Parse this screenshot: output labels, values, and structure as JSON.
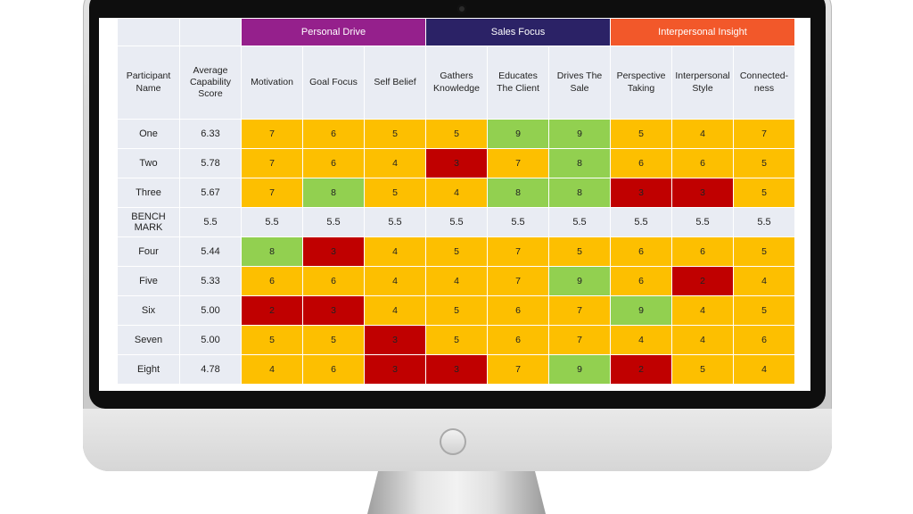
{
  "colors": {
    "orange": "#fdbf00",
    "green": "#92d050",
    "red": "#c00000",
    "personal_drive": "#95208c",
    "sales_focus": "#2b2266",
    "interpersonal_insight": "#f2582a",
    "header_bg": "#e9ecf3"
  },
  "groups": {
    "personal_drive": "Personal Drive",
    "sales_focus": "Sales Focus",
    "interpersonal_insight": "Interpersonal Insight"
  },
  "headers": {
    "participant": "Participant Name",
    "average": "Average Capability Score",
    "motivation": "Motivation",
    "goal_focus": "Goal Focus",
    "self_belief": "Self Belief",
    "gathers_knowledge": "Gathers Knowledge",
    "educates_client": "Educates The Client",
    "drives_sale": "Drives The Sale",
    "perspective_taking": "Perspective Taking",
    "interpersonal_style": "Interpersonal Style",
    "connectedness": "Connected-ness"
  },
  "rows": [
    {
      "name": "One",
      "avg": "6.33",
      "scores": [
        "7",
        "6",
        "5",
        "5",
        "9",
        "9",
        "5",
        "4",
        "7"
      ],
      "colors": [
        "orange",
        "orange",
        "orange",
        "orange",
        "green",
        "green",
        "orange",
        "orange",
        "orange"
      ]
    },
    {
      "name": "Two",
      "avg": "5.78",
      "scores": [
        "7",
        "6",
        "4",
        "3",
        "7",
        "8",
        "6",
        "6",
        "5"
      ],
      "colors": [
        "orange",
        "orange",
        "orange",
        "red",
        "orange",
        "green",
        "orange",
        "orange",
        "orange"
      ]
    },
    {
      "name": "Three",
      "avg": "5.67",
      "scores": [
        "7",
        "8",
        "5",
        "4",
        "8",
        "8",
        "3",
        "3",
        "5"
      ],
      "colors": [
        "orange",
        "green",
        "orange",
        "orange",
        "green",
        "green",
        "red",
        "red",
        "orange"
      ]
    },
    {
      "name": "BENCH MARK",
      "avg": "5.5",
      "scores": [
        "5.5",
        "5.5",
        "5.5",
        "5.5",
        "5.5",
        "5.5",
        "5.5",
        "5.5",
        "5.5"
      ],
      "colors": [
        "bench",
        "bench",
        "bench",
        "bench",
        "bench",
        "bench",
        "bench",
        "bench",
        "bench"
      ],
      "bench": true
    },
    {
      "name": "Four",
      "avg": "5.44",
      "scores": [
        "8",
        "3",
        "4",
        "5",
        "7",
        "5",
        "6",
        "6",
        "5"
      ],
      "colors": [
        "green",
        "red",
        "orange",
        "orange",
        "orange",
        "orange",
        "orange",
        "orange",
        "orange"
      ]
    },
    {
      "name": "Five",
      "avg": "5.33",
      "scores": [
        "6",
        "6",
        "4",
        "4",
        "7",
        "9",
        "6",
        "2",
        "4"
      ],
      "colors": [
        "orange",
        "orange",
        "orange",
        "orange",
        "orange",
        "green",
        "orange",
        "red",
        "orange"
      ]
    },
    {
      "name": "Six",
      "avg": "5.00",
      "scores": [
        "2",
        "3",
        "4",
        "5",
        "6",
        "7",
        "9",
        "4",
        "5"
      ],
      "colors": [
        "red",
        "red",
        "orange",
        "orange",
        "orange",
        "orange",
        "green",
        "orange",
        "orange"
      ]
    },
    {
      "name": "Seven",
      "avg": "5.00",
      "scores": [
        "5",
        "5",
        "3",
        "5",
        "6",
        "7",
        "4",
        "4",
        "6"
      ],
      "colors": [
        "orange",
        "orange",
        "red",
        "orange",
        "orange",
        "orange",
        "orange",
        "orange",
        "orange"
      ]
    },
    {
      "name": "Eight",
      "avg": "4.78",
      "scores": [
        "4",
        "6",
        "3",
        "3",
        "7",
        "9",
        "2",
        "5",
        "4"
      ],
      "colors": [
        "orange",
        "orange",
        "red",
        "red",
        "orange",
        "green",
        "red",
        "orange",
        "orange"
      ]
    }
  ]
}
